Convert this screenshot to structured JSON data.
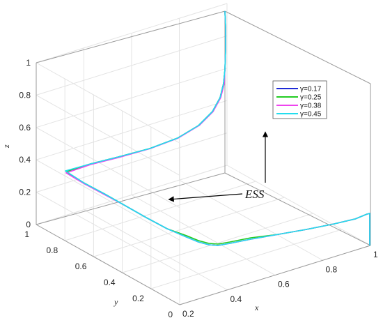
{
  "chart_data": {
    "type": "line",
    "projection": "3d",
    "xlabel": "x",
    "ylabel": "y",
    "zlabel": "z",
    "x_ticks": [
      "0.2",
      "0.4",
      "0.6",
      "0.8",
      "1"
    ],
    "y_ticks": [
      "0",
      "0.2",
      "0.4",
      "0.6",
      "0.8",
      "1"
    ],
    "z_ticks": [
      "0",
      "0.2",
      "0.4",
      "0.6",
      "0.8",
      "1"
    ],
    "xlim": [
      0.2,
      1
    ],
    "ylim": [
      0,
      1
    ],
    "zlim": [
      0,
      1
    ],
    "grid": true,
    "legend_position": "top-right",
    "annotation": "ESS",
    "series": [
      {
        "name": "γ=0.17",
        "color": "#1f2bd6"
      },
      {
        "name": "γ=0.25",
        "color": "#22cc22"
      },
      {
        "name": "γ=0.38",
        "color": "#ee44ee"
      },
      {
        "name": "γ=0.45",
        "color": "#22ddee"
      }
    ]
  }
}
